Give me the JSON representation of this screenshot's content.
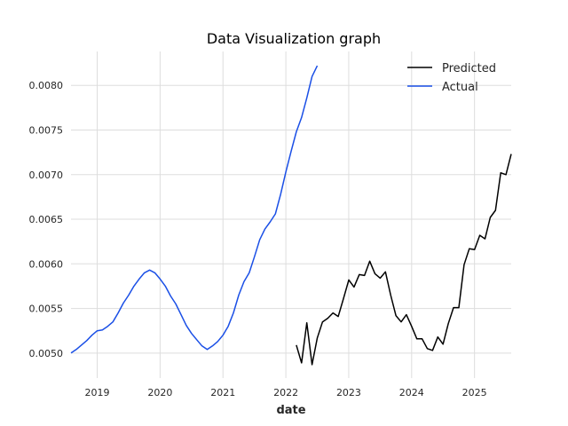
{
  "chart_data": {
    "type": "line",
    "title": "Data Visualization graph",
    "xlabel": "date",
    "ylabel": "",
    "x_axis": {
      "min": "2018-08",
      "max": "2025-08",
      "ticks": [
        "2019",
        "2020",
        "2021",
        "2022",
        "2023",
        "2024",
        "2025"
      ]
    },
    "y_axis": {
      "min": 0.00472,
      "max": 0.00838,
      "ticks": [
        "0.0050",
        "0.0055",
        "0.0060",
        "0.0065",
        "0.0070",
        "0.0075",
        "0.0080"
      ]
    },
    "grid": true,
    "legend_position": "top-right",
    "series": [
      {
        "name": "Predicted",
        "color": "#000000",
        "points": [
          [
            "2022-03",
            0.00509
          ],
          [
            "2022-04",
            0.00489
          ],
          [
            "2022-05",
            0.00534
          ],
          [
            "2022-06",
            0.00487
          ],
          [
            "2022-07",
            0.00517
          ],
          [
            "2022-08",
            0.00535
          ],
          [
            "2022-09",
            0.00539
          ],
          [
            "2022-10",
            0.00545
          ],
          [
            "2022-11",
            0.00541
          ],
          [
            "2022-12",
            0.00561
          ],
          [
            "2023-01",
            0.00582
          ],
          [
            "2023-02",
            0.00574
          ],
          [
            "2023-03",
            0.00588
          ],
          [
            "2023-04",
            0.00587
          ],
          [
            "2023-05",
            0.00603
          ],
          [
            "2023-06",
            0.00589
          ],
          [
            "2023-07",
            0.00584
          ],
          [
            "2023-08",
            0.00591
          ],
          [
            "2023-09",
            0.00565
          ],
          [
            "2023-10",
            0.00542
          ],
          [
            "2023-11",
            0.00535
          ],
          [
            "2023-12",
            0.00543
          ],
          [
            "2024-01",
            0.0053
          ],
          [
            "2024-02",
            0.00516
          ],
          [
            "2024-03",
            0.00516
          ],
          [
            "2024-04",
            0.00505
          ],
          [
            "2024-05",
            0.00503
          ],
          [
            "2024-06",
            0.00518
          ],
          [
            "2024-07",
            0.0051
          ],
          [
            "2024-08",
            0.00533
          ],
          [
            "2024-09",
            0.00551
          ],
          [
            "2024-10",
            0.00551
          ],
          [
            "2024-11",
            0.00599
          ],
          [
            "2024-12",
            0.00617
          ],
          [
            "2025-01",
            0.00616
          ],
          [
            "2025-02",
            0.00632
          ],
          [
            "2025-03",
            0.00628
          ],
          [
            "2025-04",
            0.00652
          ],
          [
            "2025-05",
            0.0066
          ],
          [
            "2025-06",
            0.00702
          ],
          [
            "2025-07",
            0.007
          ],
          [
            "2025-08",
            0.00723
          ]
        ]
      },
      {
        "name": "Actual",
        "color": "#1a4fe6",
        "points": [
          [
            "2018-08",
            0.005
          ],
          [
            "2018-09",
            0.00504
          ],
          [
            "2018-10",
            0.00509
          ],
          [
            "2018-11",
            0.00514
          ],
          [
            "2018-12",
            0.0052
          ],
          [
            "2019-01",
            0.00525
          ],
          [
            "2019-02",
            0.00526
          ],
          [
            "2019-03",
            0.0053
          ],
          [
            "2019-04",
            0.00535
          ],
          [
            "2019-05",
            0.00545
          ],
          [
            "2019-06",
            0.00556
          ],
          [
            "2019-07",
            0.00565
          ],
          [
            "2019-08",
            0.00575
          ],
          [
            "2019-09",
            0.00583
          ],
          [
            "2019-10",
            0.0059
          ],
          [
            "2019-11",
            0.00593
          ],
          [
            "2019-12",
            0.0059
          ],
          [
            "2020-01",
            0.00583
          ],
          [
            "2020-02",
            0.00575
          ],
          [
            "2020-03",
            0.00564
          ],
          [
            "2020-04",
            0.00555
          ],
          [
            "2020-05",
            0.00543
          ],
          [
            "2020-06",
            0.00531
          ],
          [
            "2020-07",
            0.00522
          ],
          [
            "2020-08",
            0.00515
          ],
          [
            "2020-09",
            0.00508
          ],
          [
            "2020-10",
            0.00504
          ],
          [
            "2020-11",
            0.00508
          ],
          [
            "2020-12",
            0.00513
          ],
          [
            "2021-01",
            0.0052
          ],
          [
            "2021-02",
            0.0053
          ],
          [
            "2021-03",
            0.00545
          ],
          [
            "2021-04",
            0.00565
          ],
          [
            "2021-05",
            0.0058
          ],
          [
            "2021-06",
            0.0059
          ],
          [
            "2021-07",
            0.00608
          ],
          [
            "2021-08",
            0.00627
          ],
          [
            "2021-09",
            0.00639
          ],
          [
            "2021-10",
            0.00647
          ],
          [
            "2021-11",
            0.00656
          ],
          [
            "2021-12",
            0.00678
          ],
          [
            "2022-01",
            0.00703
          ],
          [
            "2022-02",
            0.00726
          ],
          [
            "2022-03",
            0.00748
          ],
          [
            "2022-04",
            0.00764
          ],
          [
            "2022-05",
            0.00786
          ],
          [
            "2022-06",
            0.0081
          ],
          [
            "2022-07",
            0.00822
          ]
        ]
      }
    ]
  }
}
